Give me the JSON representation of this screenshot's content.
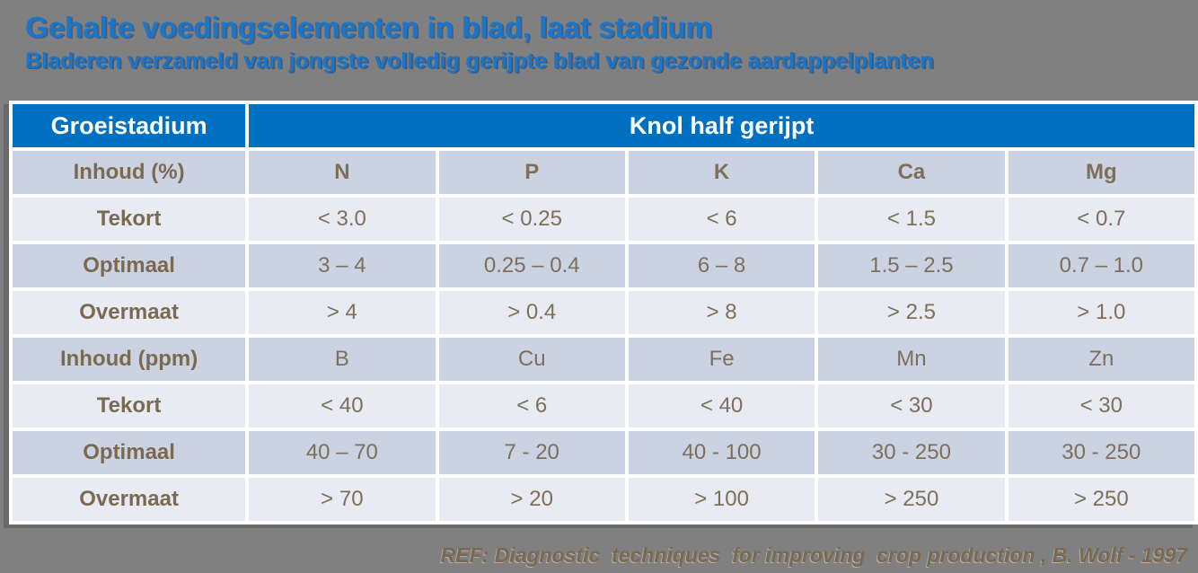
{
  "slide": {
    "title": "Gehalte voedingselementen in blad, laat stadium",
    "subtitle": "Bladeren verzameld van jongste volledig gerijpte blad van gezonde aardappelplanten",
    "footer_ref": "REF: Diagnostic  techniques  for improving  crop production , B. Wolf - 1997"
  },
  "table": {
    "header": {
      "growth_stage": "Groeistadium",
      "span_header": "Knol half gerijpt"
    },
    "rows": [
      {
        "label": "Inhoud (%)",
        "band": "medium",
        "bold_values": true,
        "values": [
          "N",
          "P",
          "K",
          "Ca",
          "Mg"
        ]
      },
      {
        "label": "Tekort",
        "band": "light",
        "bold_values": false,
        "values": [
          "< 3.0",
          "< 0.25",
          "< 6",
          "< 1.5",
          "< 0.7"
        ]
      },
      {
        "label": "Optimaal",
        "band": "medium",
        "bold_values": false,
        "values": [
          "3 – 4",
          "0.25 – 0.4",
          "6 – 8",
          "1.5 – 2.5",
          "0.7 – 1.0"
        ]
      },
      {
        "label": "Overmaat",
        "band": "light",
        "bold_values": false,
        "values": [
          "> 4",
          "> 0.4",
          "> 8",
          "> 2.5",
          "> 1.0"
        ]
      },
      {
        "label": "Inhoud (ppm)",
        "band": "medium",
        "bold_values": false,
        "values": [
          "B",
          "Cu",
          "Fe",
          "Mn",
          "Zn"
        ]
      },
      {
        "label": "Tekort",
        "band": "light",
        "bold_values": false,
        "values": [
          "< 40",
          "< 6",
          "< 40",
          "< 30",
          "< 30"
        ]
      },
      {
        "label": "Optimaal",
        "band": "medium",
        "bold_values": false,
        "values": [
          "40 – 70",
          "7 - 20",
          "40 - 100",
          "30 - 250",
          "30 - 250"
        ]
      },
      {
        "label": "Overmaat",
        "band": "light",
        "bold_values": false,
        "values": [
          "> 70",
          "> 20",
          "> 100",
          "> 250",
          "> 250"
        ]
      }
    ]
  },
  "colors": {
    "background": "#808080",
    "title_blue": "#1B76C9",
    "header_blue": "#0070C0",
    "row_band_medium": "#CBD3E2",
    "row_band_light": "#E9EBF3",
    "label_text": "#7B6A52",
    "value_text": "#7E6F5A",
    "header_text": "#FFFFFF"
  },
  "chart_data": {
    "type": "table",
    "title": "Gehalte voedingselementen in blad, laat stadium",
    "subtitle": "Bladeren verzameld van jongste volledig gerijpte blad van gezonde aardappelplanten",
    "group_header": "Knol half gerijpt",
    "row_header_column": "Groeistadium",
    "sections": [
      {
        "unit": "Inhoud (%)",
        "elements": [
          "N",
          "P",
          "K",
          "Ca",
          "Mg"
        ],
        "tekort": [
          "< 3.0",
          "< 0.25",
          "< 6",
          "< 1.5",
          "< 0.7"
        ],
        "optimaal": [
          "3 – 4",
          "0.25 – 0.4",
          "6 – 8",
          "1.5 – 2.5",
          "0.7 – 1.0"
        ],
        "overmaat": [
          "> 4",
          "> 0.4",
          "> 8",
          "> 2.5",
          "> 1.0"
        ]
      },
      {
        "unit": "Inhoud (ppm)",
        "elements": [
          "B",
          "Cu",
          "Fe",
          "Mn",
          "Zn"
        ],
        "tekort": [
          "< 40",
          "< 6",
          "< 40",
          "< 30",
          "< 30"
        ],
        "optimaal": [
          "40 – 70",
          "7 - 20",
          "40 - 100",
          "30 - 250",
          "30 - 250"
        ],
        "overmaat": [
          "> 70",
          "> 20",
          "> 100",
          "> 250",
          "> 250"
        ]
      }
    ],
    "reference": "REF: Diagnostic techniques for improving crop production , B. Wolf - 1997"
  }
}
